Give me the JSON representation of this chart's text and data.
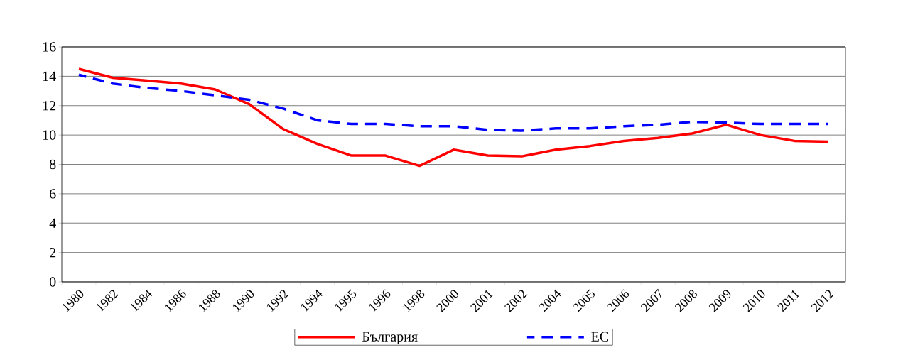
{
  "chart_data": {
    "type": "line",
    "categories": [
      "1980",
      "1982",
      "1984",
      "1986",
      "1988",
      "1990",
      "1992",
      "1994",
      "1995",
      "1996",
      "1998",
      "2000",
      "2001",
      "2002",
      "2004",
      "2005",
      "2006",
      "2007",
      "2008",
      "2009",
      "2010",
      "2011",
      "2012"
    ],
    "series": [
      {
        "name": "България",
        "color": "#ff0000",
        "line_style": "solid",
        "values": [
          14.5,
          13.9,
          13.7,
          13.5,
          13.1,
          12.1,
          10.4,
          9.4,
          8.6,
          8.6,
          7.9,
          9.0,
          8.6,
          8.55,
          9.0,
          9.25,
          9.6,
          9.8,
          10.1,
          10.7,
          10.0,
          9.6,
          9.55
        ]
      },
      {
        "name": "ЕС",
        "color": "#0000ff",
        "line_style": "dashed",
        "values": [
          14.1,
          13.5,
          13.2,
          13.0,
          12.7,
          12.4,
          11.8,
          11.0,
          10.75,
          10.75,
          10.6,
          10.6,
          10.35,
          10.3,
          10.45,
          10.45,
          10.6,
          10.7,
          10.9,
          10.85,
          10.75,
          10.75,
          10.75
        ]
      }
    ],
    "ylim": [
      0,
      16
    ],
    "yticks": [
      0,
      2,
      4,
      6,
      8,
      10,
      12,
      14,
      16
    ],
    "grid": "y",
    "legend": "bottom"
  }
}
